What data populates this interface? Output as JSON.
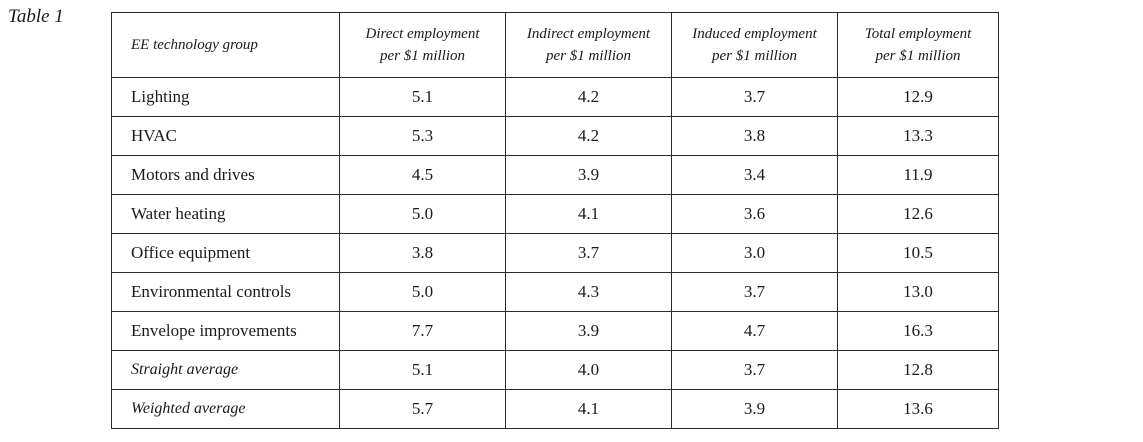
{
  "caption": "Table 1",
  "table": {
    "headers": [
      {
        "line1": "EE technology group",
        "line2": ""
      },
      {
        "line1": "Direct employment",
        "line2": "per $1 million"
      },
      {
        "line1": "Indirect employment",
        "line2": "per $1 million"
      },
      {
        "line1": "Induced employment",
        "line2": "per $1 million"
      },
      {
        "line1": "Total employment",
        "line2": "per $1 million"
      }
    ],
    "rows": [
      {
        "group": "Lighting",
        "direct": "5.1",
        "indirect": "4.2",
        "induced": "3.7",
        "total": "12.9"
      },
      {
        "group": "HVAC",
        "direct": "5.3",
        "indirect": "4.2",
        "induced": "3.8",
        "total": "13.3"
      },
      {
        "group": "Motors and drives",
        "direct": "4.5",
        "indirect": "3.9",
        "induced": "3.4",
        "total": "11.9"
      },
      {
        "group": "Water heating",
        "direct": "5.0",
        "indirect": "4.1",
        "induced": "3.6",
        "total": "12.6"
      },
      {
        "group": "Office equipment",
        "direct": "3.8",
        "indirect": "3.7",
        "induced": "3.0",
        "total": "10.5"
      },
      {
        "group": "Environmental controls",
        "direct": "5.0",
        "indirect": "4.3",
        "induced": "3.7",
        "total": "13.0"
      },
      {
        "group": "Envelope improvements",
        "direct": "7.7",
        "indirect": "3.9",
        "induced": "4.7",
        "total": "16.3"
      },
      {
        "group": "Straight average",
        "direct": "5.1",
        "indirect": "4.0",
        "induced": "3.7",
        "total": "12.8"
      },
      {
        "group": "Weighted average",
        "direct": "5.7",
        "indirect": "4.1",
        "induced": "3.9",
        "total": "13.6"
      }
    ]
  }
}
